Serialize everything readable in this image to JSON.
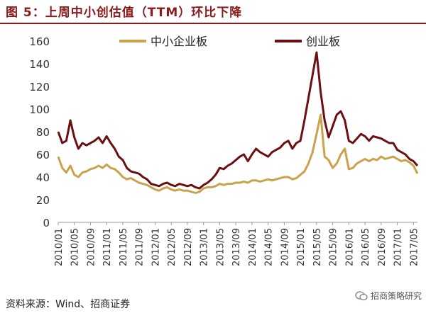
{
  "title": "图 5：上周中小创估值（TTM）环比下降",
  "source": "资料来源：Wind、招商证券",
  "watermark": "招商策略研究",
  "colors": {
    "sme": "#c9a24b",
    "gem": "#6b0f12",
    "title": "#8b1a1a"
  },
  "chart_data": {
    "type": "line",
    "title": "",
    "xlabel": "",
    "ylabel": "",
    "ylim": [
      0,
      160
    ],
    "yticks": [
      0,
      20,
      40,
      60,
      80,
      100,
      120,
      140,
      160
    ],
    "xlim": [
      "2010-01",
      "2017-06"
    ],
    "xticks": [
      "2010/01",
      "2010/05",
      "2010/09",
      "2011/01",
      "2011/05",
      "2011/09",
      "2012/01",
      "2012/05",
      "2012/09",
      "2013/01",
      "2013/05",
      "2013/09",
      "2014/01",
      "2014/05",
      "2014/09",
      "2015/01",
      "2015/05",
      "2015/09",
      "2016/01",
      "2016/05",
      "2016/09",
      "2017/01",
      "2017/05"
    ],
    "grid": false,
    "legend": "top",
    "series": [
      {
        "name": "中小企业板",
        "color": "#c9a24b",
        "x": [
          "2010-01",
          "2010-02",
          "2010-03",
          "2010-04",
          "2010-05",
          "2010-06",
          "2010-07",
          "2010-08",
          "2010-09",
          "2010-10",
          "2010-11",
          "2010-12",
          "2011-01",
          "2011-02",
          "2011-03",
          "2011-04",
          "2011-05",
          "2011-06",
          "2011-07",
          "2011-08",
          "2011-09",
          "2011-10",
          "2011-11",
          "2011-12",
          "2012-01",
          "2012-02",
          "2012-03",
          "2012-04",
          "2012-05",
          "2012-06",
          "2012-07",
          "2012-08",
          "2012-09",
          "2012-10",
          "2012-11",
          "2012-12",
          "2013-01",
          "2013-02",
          "2013-03",
          "2013-04",
          "2013-05",
          "2013-06",
          "2013-07",
          "2013-08",
          "2013-09",
          "2013-10",
          "2013-11",
          "2013-12",
          "2014-01",
          "2014-02",
          "2014-03",
          "2014-04",
          "2014-05",
          "2014-06",
          "2014-07",
          "2014-08",
          "2014-09",
          "2014-10",
          "2014-11",
          "2014-12",
          "2015-01",
          "2015-02",
          "2015-03",
          "2015-04",
          "2015-05",
          "2015-06",
          "2015-07",
          "2015-08",
          "2015-09",
          "2015-10",
          "2015-11",
          "2015-12",
          "2016-01",
          "2016-02",
          "2016-03",
          "2016-04",
          "2016-05",
          "2016-06",
          "2016-07",
          "2016-08",
          "2016-09",
          "2016-10",
          "2016-11",
          "2016-12",
          "2017-01",
          "2017-02",
          "2017-03",
          "2017-04",
          "2017-05",
          "2017-06"
        ],
        "values": [
          58,
          48,
          44,
          50,
          42,
          40,
          44,
          45,
          47,
          48,
          50,
          48,
          51,
          48,
          47,
          44,
          40,
          38,
          39,
          37,
          35,
          34,
          33,
          31,
          29,
          28,
          30,
          31,
          29,
          28,
          29,
          28,
          28,
          27,
          26,
          27,
          30,
          31,
          31,
          32,
          34,
          33,
          34,
          34,
          35,
          35,
          36,
          35,
          37,
          37,
          36,
          37,
          38,
          37,
          38,
          39,
          40,
          40,
          38,
          39,
          42,
          45,
          52,
          62,
          78,
          95,
          58,
          55,
          48,
          52,
          60,
          65,
          47,
          48,
          52,
          54,
          56,
          54,
          56,
          55,
          58,
          56,
          57,
          58,
          56,
          54,
          55,
          53,
          50,
          43
        ]
      },
      {
        "name": "创业板",
        "color": "#6b0f12",
        "x": [
          "2010-01",
          "2010-02",
          "2010-03",
          "2010-04",
          "2010-05",
          "2010-06",
          "2010-07",
          "2010-08",
          "2010-09",
          "2010-10",
          "2010-11",
          "2010-12",
          "2011-01",
          "2011-02",
          "2011-03",
          "2011-04",
          "2011-05",
          "2011-06",
          "2011-07",
          "2011-08",
          "2011-09",
          "2011-10",
          "2011-11",
          "2011-12",
          "2012-01",
          "2012-02",
          "2012-03",
          "2012-04",
          "2012-05",
          "2012-06",
          "2012-07",
          "2012-08",
          "2012-09",
          "2012-10",
          "2012-11",
          "2012-12",
          "2013-01",
          "2013-02",
          "2013-03",
          "2013-04",
          "2013-05",
          "2013-06",
          "2013-07",
          "2013-08",
          "2013-09",
          "2013-10",
          "2013-11",
          "2013-12",
          "2014-01",
          "2014-02",
          "2014-03",
          "2014-04",
          "2014-05",
          "2014-06",
          "2014-07",
          "2014-08",
          "2014-09",
          "2014-10",
          "2014-11",
          "2014-12",
          "2015-01",
          "2015-02",
          "2015-03",
          "2015-04",
          "2015-05",
          "2015-06",
          "2015-07",
          "2015-08",
          "2015-09",
          "2015-10",
          "2015-11",
          "2015-12",
          "2016-01",
          "2016-02",
          "2016-03",
          "2016-04",
          "2016-05",
          "2016-06",
          "2016-07",
          "2016-08",
          "2016-09",
          "2016-10",
          "2016-11",
          "2016-12",
          "2017-01",
          "2017-02",
          "2017-03",
          "2017-04",
          "2017-05",
          "2017-06"
        ],
        "values": [
          80,
          70,
          72,
          90,
          75,
          65,
          70,
          68,
          70,
          72,
          75,
          70,
          76,
          70,
          65,
          58,
          55,
          48,
          45,
          44,
          43,
          40,
          38,
          34,
          33,
          32,
          34,
          35,
          33,
          32,
          34,
          33,
          32,
          33,
          31,
          30,
          33,
          35,
          38,
          42,
          48,
          47,
          50,
          52,
          55,
          58,
          60,
          54,
          60,
          65,
          62,
          60,
          58,
          62,
          64,
          66,
          70,
          72,
          65,
          70,
          72,
          90,
          110,
          130,
          150,
          115,
          90,
          75,
          85,
          95,
          98,
          90,
          72,
          70,
          74,
          78,
          76,
          72,
          76,
          75,
          74,
          72,
          70,
          70,
          64,
          62,
          60,
          56,
          54,
          50
        ]
      }
    ]
  }
}
